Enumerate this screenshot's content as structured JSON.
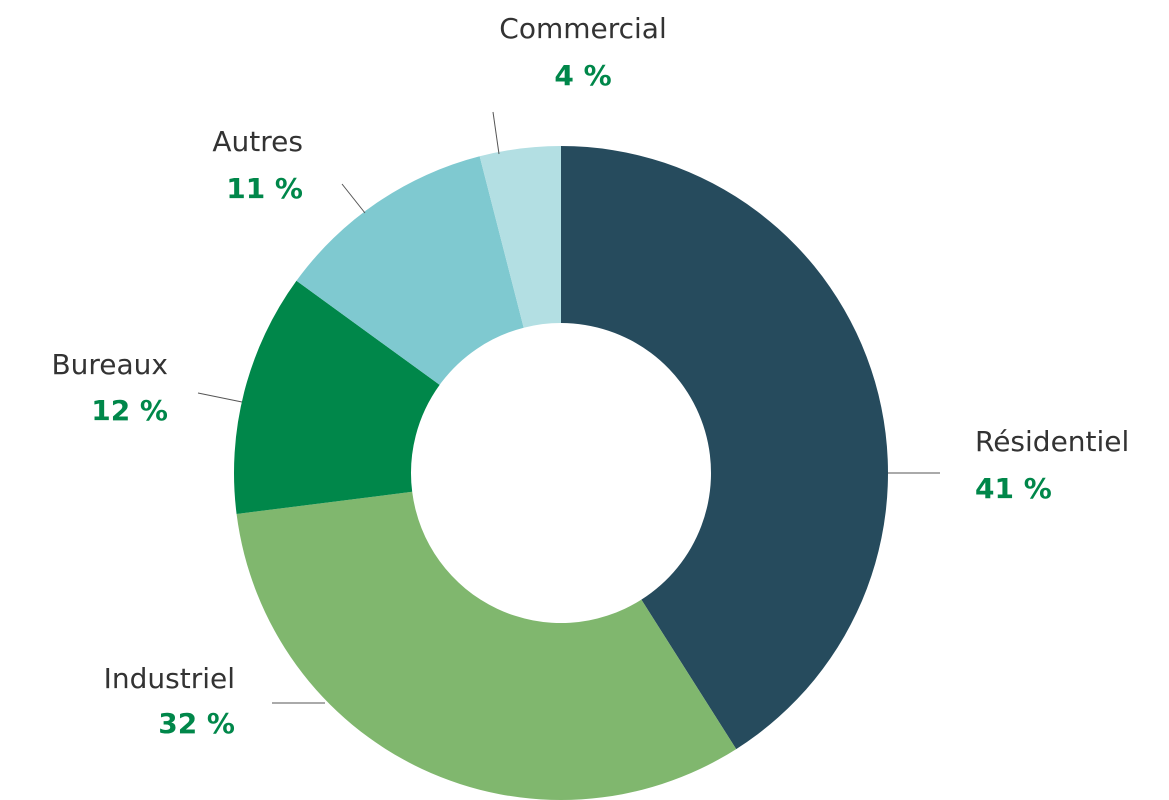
{
  "chart_data": {
    "type": "donut",
    "categories": [
      "Résidentiel",
      "Industriel",
      "Bureaux",
      "Autres",
      "Commercial"
    ],
    "values": [
      41,
      32,
      12,
      11,
      4
    ],
    "value_labels": [
      "41 %",
      "32 %",
      "12 %",
      "11 %",
      "4 %"
    ],
    "colors": [
      "#264b5d",
      "#80b76e",
      "#00874a",
      "#7fc9d0",
      "#b3dfe3"
    ]
  }
}
